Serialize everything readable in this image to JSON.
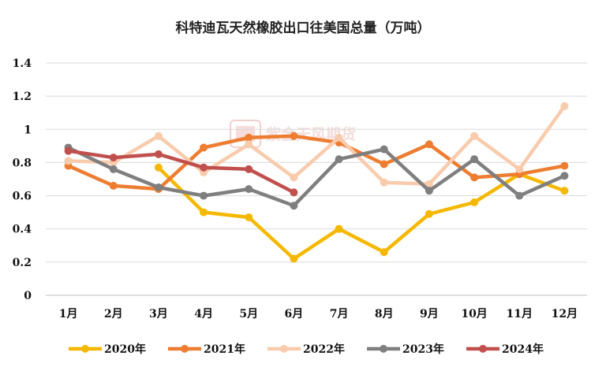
{
  "chart_data": {
    "type": "line",
    "title": "科特迪瓦天然橡胶出口往美国总量（万吨）",
    "categories": [
      "1月",
      "2月",
      "3月",
      "4月",
      "5月",
      "6月",
      "7月",
      "8月",
      "9月",
      "10月",
      "11月",
      "12月"
    ],
    "ylim": [
      0,
      1.4
    ],
    "yticks": [
      "0",
      "0.2",
      "0.4",
      "0.6",
      "0.8",
      "1",
      "1.2",
      "1.4"
    ],
    "grid": true,
    "legend_position": "bottom",
    "series": [
      {
        "name": "2020年",
        "color": "#f5b800",
        "values": [
          null,
          null,
          0.77,
          0.5,
          0.47,
          0.22,
          0.4,
          0.26,
          0.49,
          0.56,
          0.73,
          0.63
        ]
      },
      {
        "name": "2021年",
        "color": "#ed7d31",
        "values": [
          0.78,
          0.66,
          0.64,
          0.89,
          0.95,
          0.96,
          0.92,
          0.79,
          0.91,
          0.71,
          0.73,
          0.78
        ]
      },
      {
        "name": "2022年",
        "color": "#f8cbad",
        "values": [
          0.81,
          0.8,
          0.96,
          0.74,
          0.91,
          0.71,
          0.95,
          0.68,
          0.67,
          0.96,
          0.76,
          1.14
        ]
      },
      {
        "name": "2023年",
        "color": "#7f7f7f",
        "values": [
          0.89,
          0.76,
          0.65,
          0.6,
          0.64,
          0.54,
          0.82,
          0.88,
          0.63,
          0.82,
          0.6,
          0.72
        ]
      },
      {
        "name": "2024年",
        "color": "#c0504d",
        "values": [
          0.87,
          0.83,
          0.85,
          0.77,
          0.76,
          0.62,
          null,
          null,
          null,
          null,
          null,
          null
        ]
      }
    ]
  },
  "watermark": {
    "text": "紫金天风期货",
    "logo_icon": "zijin-logo-icon"
  }
}
